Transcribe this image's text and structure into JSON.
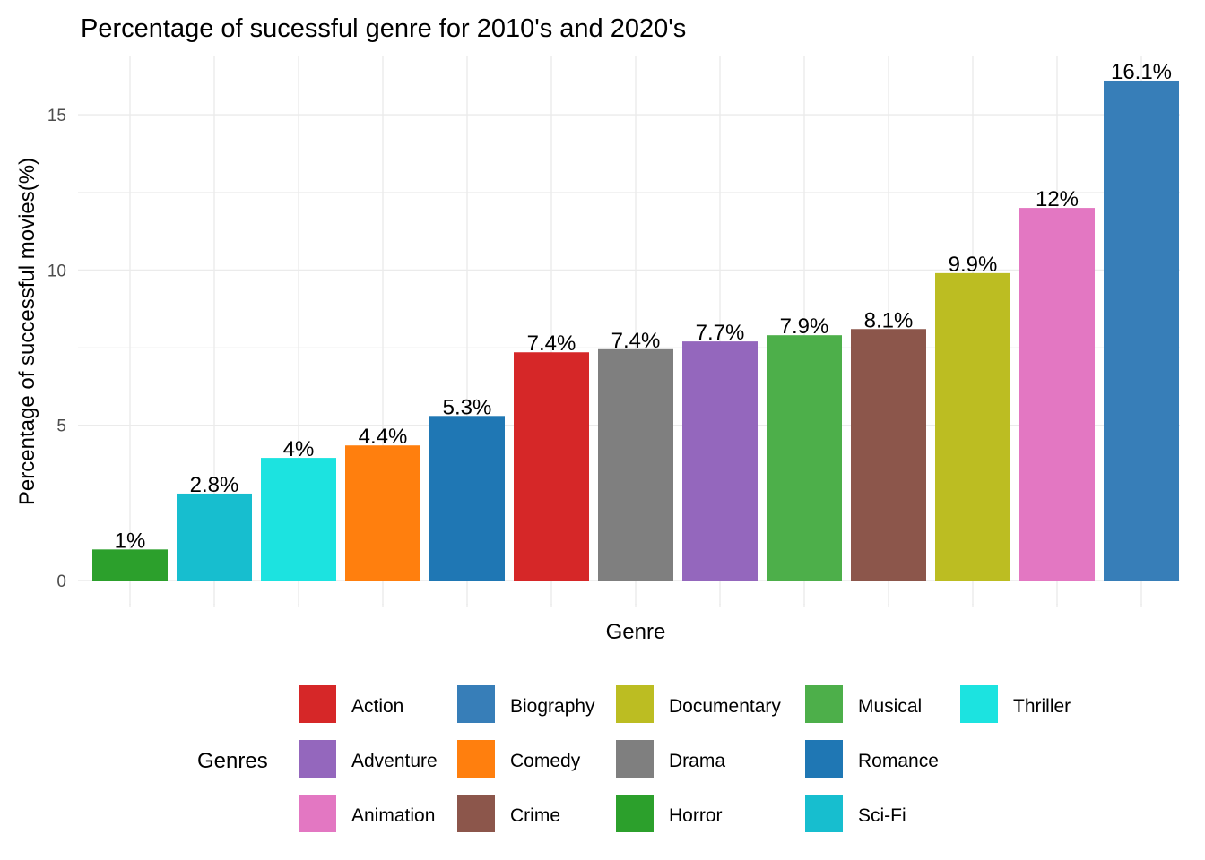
{
  "chart_data": {
    "type": "bar",
    "title": "Percentage of sucessful genre for 2010's and 2020's",
    "xlabel": "Genre",
    "ylabel": "Percentage of successful movies(%)",
    "ylim": [
      0,
      16.9
    ],
    "yticks": [
      0,
      5,
      10,
      15
    ],
    "grid": true,
    "legend_position": "bottom",
    "legend_title": "Genres",
    "categories": [
      "Horror",
      "Sci-Fi",
      "Thriller",
      "Comedy",
      "Romance",
      "Action",
      "Drama",
      "Adventure",
      "Musical",
      "Crime",
      "Documentary",
      "Animation",
      "Biography"
    ],
    "values": [
      1.0,
      2.8,
      3.95,
      4.35,
      5.3,
      7.35,
      7.45,
      7.7,
      7.9,
      8.1,
      9.9,
      12.0,
      16.1
    ],
    "data_labels": [
      "1%",
      "2.8%",
      "4%",
      "4.4%",
      "5.3%",
      "7.4%",
      "7.4%",
      "7.7%",
      "7.9%",
      "8.1%",
      "9.9%",
      "12%",
      "16.1%"
    ],
    "colors": {
      "Action": "#d62728",
      "Adventure": "#9467bd",
      "Animation": "#e377c2",
      "Biography": "#377eb8",
      "Comedy": "#ff7f0e",
      "Crime": "#8c564b",
      "Documentary": "#bcbd22",
      "Drama": "#7f7f7f",
      "Horror": "#2ca02c",
      "Musical": "#4daf4a",
      "Romance": "#1f77b4",
      "Sci-Fi": "#17becf",
      "Thriller": "#1ce3e0"
    },
    "legend_columns": [
      [
        "Action",
        "Adventure",
        "Animation"
      ],
      [
        "Biography",
        "Comedy",
        "Crime"
      ],
      [
        "Documentary",
        "Drama",
        "Horror"
      ],
      [
        "Musical",
        "Romance",
        "Sci-Fi"
      ],
      [
        "Thriller"
      ]
    ]
  }
}
